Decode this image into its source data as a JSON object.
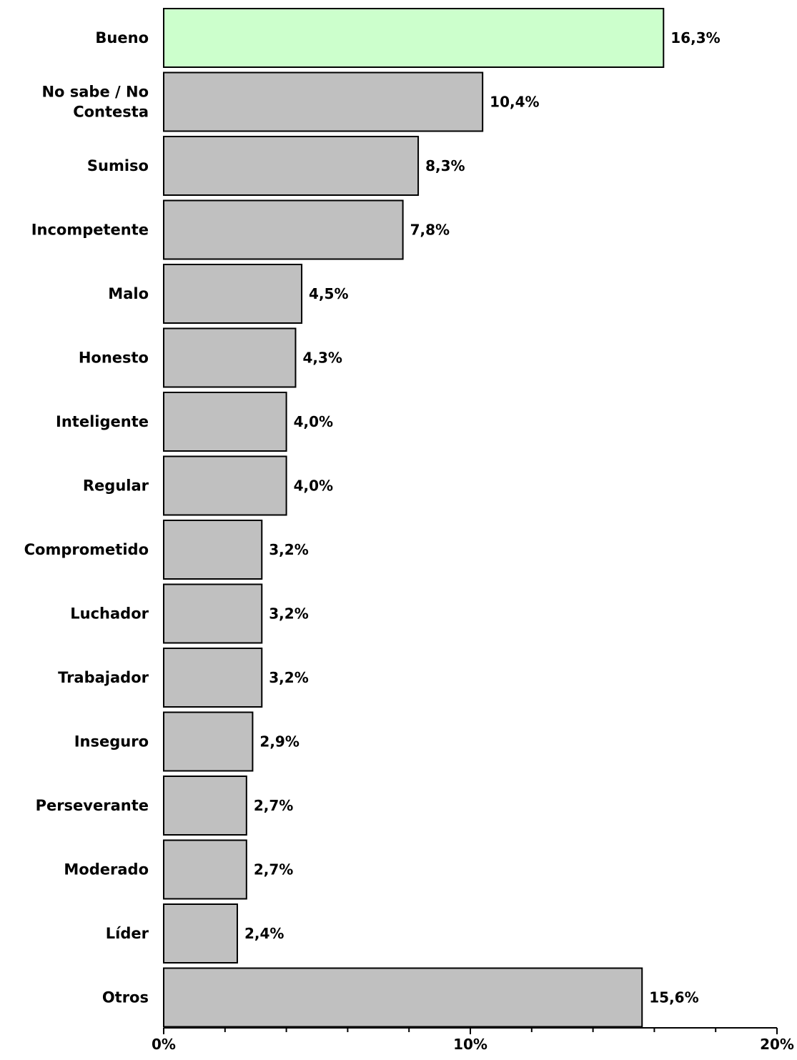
{
  "chart_data": {
    "type": "bar",
    "orientation": "horizontal",
    "categories": [
      "Bueno",
      "No sabe / No Contesta",
      "Sumiso",
      "Incompetente",
      "Malo",
      "Honesto",
      "Inteligente",
      "Regular",
      "Comprometido",
      "Luchador",
      "Trabajador",
      "Inseguro",
      "Perseverante",
      "Moderado",
      "Líder",
      "Otros"
    ],
    "category_lines": [
      [
        "Bueno"
      ],
      [
        "No sabe / No",
        "Contesta"
      ],
      [
        "Sumiso"
      ],
      [
        "Incompetente"
      ],
      [
        "Malo"
      ],
      [
        "Honesto"
      ],
      [
        "Inteligente"
      ],
      [
        "Regular"
      ],
      [
        "Comprometido"
      ],
      [
        "Luchador"
      ],
      [
        "Trabajador"
      ],
      [
        "Inseguro"
      ],
      [
        "Perseverante"
      ],
      [
        "Moderado"
      ],
      [
        "Líder"
      ],
      [
        "Otros"
      ]
    ],
    "values": [
      16.3,
      10.4,
      8.3,
      7.8,
      4.5,
      4.3,
      4.0,
      4.0,
      3.2,
      3.2,
      3.2,
      2.9,
      2.7,
      2.7,
      2.4,
      15.6
    ],
    "value_labels": [
      "16,3%",
      "10,4%",
      "8,3%",
      "7,8%",
      "4,5%",
      "4,3%",
      "4,0%",
      "4,0%",
      "3,2%",
      "3,2%",
      "3,2%",
      "2,9%",
      "2,7%",
      "2,7%",
      "2,4%",
      "15,6%"
    ],
    "highlight_index": 0,
    "colors": {
      "highlight": "#CCFFCC",
      "default": "#C0C0C0",
      "stroke": "#000000"
    },
    "xlim": [
      0,
      20
    ],
    "xticks": [
      0,
      10,
      20
    ],
    "xtick_labels": [
      "0%",
      "10%",
      "20%"
    ],
    "minor_tick_step": 2,
    "grid": false,
    "legend": "none"
  }
}
